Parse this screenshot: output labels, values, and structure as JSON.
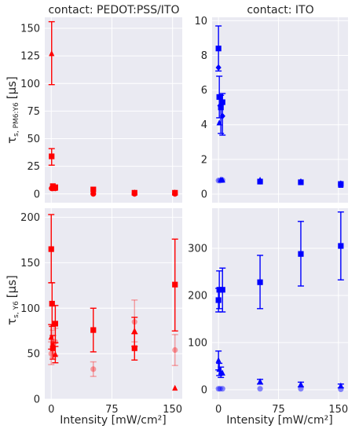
{
  "figure": {
    "xlabel": "Intensity [mW/cm²]",
    "row_ylabels": [
      {
        "main": "τ",
        "sub": "s, PM6:Y6",
        "unit": "[μs]"
      },
      {
        "main": "τ",
        "sub": "s, Y6",
        "unit": "[μs]"
      }
    ],
    "colors": {
      "red": "#ff0000",
      "blue": "#0000ff",
      "panel_bg": "#eaeaf2",
      "grid": "#ffffff"
    }
  },
  "chart_data": [
    {
      "type": "scatter",
      "title": "contact: PEDOT:PSS/ITO",
      "xlim": [
        -8,
        162
      ],
      "ylim": [
        -8,
        160
      ],
      "xticks": [
        0,
        75,
        150
      ],
      "yticks": [
        0,
        25,
        50,
        75,
        100,
        125,
        150
      ],
      "color": "#ff0000",
      "series": [
        {
          "marker": "triangle",
          "alpha": 1.0,
          "points": [
            {
              "x": 0.5,
              "y": 127,
              "lo": 99,
              "hi": 156
            },
            {
              "x": 2,
              "y": 6
            },
            {
              "x": 5,
              "y": 5
            },
            {
              "x": 52,
              "y": 2
            },
            {
              "x": 103,
              "y": 1
            },
            {
              "x": 153,
              "y": 1
            }
          ]
        },
        {
          "marker": "square",
          "alpha": 1.0,
          "points": [
            {
              "x": 0.5,
              "y": 34,
              "lo": 26,
              "hi": 41
            },
            {
              "x": 2,
              "y": 7
            },
            {
              "x": 5,
              "y": 6
            },
            {
              "x": 52,
              "y": 4
            },
            {
              "x": 103,
              "y": 1
            },
            {
              "x": 153,
              "y": 1
            }
          ]
        },
        {
          "marker": "circle",
          "alpha": 1.0,
          "points": [
            {
              "x": 0.5,
              "y": 5
            },
            {
              "x": 2,
              "y": 5
            },
            {
              "x": 5,
              "y": 5
            },
            {
              "x": 52,
              "y": 0
            },
            {
              "x": 103,
              "y": 0
            },
            {
              "x": 153,
              "y": 0
            }
          ]
        }
      ]
    },
    {
      "type": "scatter",
      "title": "contact: ITO",
      "xlim": [
        -8,
        162
      ],
      "ylim": [
        -0.5,
        10.2
      ],
      "xticks": [
        0,
        75,
        150
      ],
      "yticks": [
        0,
        2,
        4,
        6,
        8,
        10
      ],
      "color": "#0000ff",
      "series": [
        {
          "marker": "square",
          "alpha": 1.0,
          "points": [
            {
              "x": 0,
              "y": 8.4,
              "lo": 7.1,
              "hi": 9.7
            },
            {
              "x": 1,
              "y": 5.6,
              "lo": 4.4,
              "hi": 6.8
            },
            {
              "x": 3,
              "y": 5.0,
              "lo": 3.5,
              "hi": 5.7
            },
            {
              "x": 5,
              "y": 5.3,
              "lo": 3.4,
              "hi": 5.8
            },
            {
              "x": 52,
              "y": 0.72
            },
            {
              "x": 103,
              "y": 0.68
            },
            {
              "x": 153,
              "y": 0.58
            }
          ]
        },
        {
          "marker": "triangle",
          "alpha": 1.0,
          "points": [
            {
              "x": 1,
              "y": 4.1
            },
            {
              "x": 3,
              "y": 0.82
            },
            {
              "x": 5,
              "y": 0.8
            },
            {
              "x": 52,
              "y": 0.8
            },
            {
              "x": 103,
              "y": 0.72
            },
            {
              "x": 153,
              "y": 0.5
            }
          ]
        },
        {
          "marker": "diamond",
          "alpha": 1.0,
          "points": [
            {
              "x": 0,
              "y": 7.3
            },
            {
              "x": 2,
              "y": 5.1
            },
            {
              "x": 5,
              "y": 4.5
            },
            {
              "x": 52,
              "y": 0.74
            },
            {
              "x": 103,
              "y": 0.7
            },
            {
              "x": 153,
              "y": 0.6
            }
          ]
        },
        {
          "marker": "circle",
          "alpha": 0.45,
          "points": [
            {
              "x": 0,
              "y": 0.78
            },
            {
              "x": 2,
              "y": 0.78
            },
            {
              "x": 5,
              "y": 0.8
            },
            {
              "x": 52,
              "y": 0.72
            },
            {
              "x": 103,
              "y": 0.68
            },
            {
              "x": 153,
              "y": 0.55
            }
          ]
        }
      ]
    },
    {
      "type": "scatter",
      "title": "",
      "xlim": [
        -8,
        162
      ],
      "ylim": [
        0,
        210
      ],
      "xticks": [
        0,
        75,
        150
      ],
      "yticks": [
        0,
        50,
        100,
        150,
        200
      ],
      "color": "#ff0000",
      "series": [
        {
          "marker": "square",
          "alpha": 1.0,
          "points": [
            {
              "x": 0,
              "y": 165,
              "lo": 128,
              "hi": 203
            },
            {
              "x": 1,
              "y": 105,
              "lo": 80,
              "hi": 128
            },
            {
              "x": 2,
              "y": 56,
              "lo": 44,
              "hi": 70
            },
            {
              "x": 5,
              "y": 83,
              "lo": 62,
              "hi": 103
            },
            {
              "x": 52,
              "y": 76,
              "lo": 52,
              "hi": 100
            },
            {
              "x": 103,
              "y": 56,
              "lo": 43,
              "hi": 72
            },
            {
              "x": 153,
              "y": 126,
              "lo": 75,
              "hi": 176
            }
          ]
        },
        {
          "marker": "triangle",
          "alpha": 1.0,
          "points": [
            {
              "x": 0,
              "y": 68,
              "lo": 55,
              "hi": 82
            },
            {
              "x": 2,
              "y": 60
            },
            {
              "x": 5,
              "y": 49,
              "lo": 40,
              "hi": 58
            },
            {
              "x": 103,
              "y": 75,
              "lo": 58,
              "hi": 90
            },
            {
              "x": 153,
              "y": 12
            }
          ]
        },
        {
          "marker": "circle",
          "alpha": 0.35,
          "points": [
            {
              "x": 0,
              "y": 50,
              "lo": 38,
              "hi": 63
            },
            {
              "x": 2,
              "y": 61,
              "lo": 46,
              "hi": 76
            },
            {
              "x": 5,
              "y": 63,
              "lo": 48,
              "hi": 78
            },
            {
              "x": 52,
              "y": 33,
              "lo": 25,
              "hi": 41
            },
            {
              "x": 103,
              "y": 85,
              "lo": 63,
              "hi": 109
            },
            {
              "x": 153,
              "y": 54,
              "lo": 37,
              "hi": 71
            }
          ]
        }
      ]
    },
    {
      "type": "scatter",
      "title": "",
      "xlim": [
        -8,
        162
      ],
      "ylim": [
        -20,
        385
      ],
      "xticks": [
        0,
        75,
        150
      ],
      "yticks": [
        0,
        100,
        200,
        300
      ],
      "color": "#0000ff",
      "series": [
        {
          "marker": "square",
          "alpha": 1.0,
          "points": [
            {
              "x": 0,
              "y": 190,
              "lo": 165,
              "hi": 215
            },
            {
              "x": 1,
              "y": 212,
              "lo": 172,
              "hi": 252
            },
            {
              "x": 5,
              "y": 212,
              "lo": 165,
              "hi": 258
            },
            {
              "x": 52,
              "y": 228,
              "lo": 172,
              "hi": 285
            },
            {
              "x": 103,
              "y": 288,
              "lo": 220,
              "hi": 357
            },
            {
              "x": 153,
              "y": 305,
              "lo": 233,
              "hi": 377
            }
          ]
        },
        {
          "marker": "triangle",
          "alpha": 1.0,
          "points": [
            {
              "x": 0,
              "y": 62,
              "lo": 42,
              "hi": 82
            },
            {
              "x": 1,
              "y": 43,
              "lo": 30,
              "hi": 56
            },
            {
              "x": 3,
              "y": 37,
              "lo": 26,
              "hi": 48
            },
            {
              "x": 5,
              "y": 35
            },
            {
              "x": 52,
              "y": 17,
              "lo": 12,
              "hi": 22
            },
            {
              "x": 103,
              "y": 11,
              "lo": 6,
              "hi": 16
            },
            {
              "x": 153,
              "y": 8,
              "lo": 4,
              "hi": 12
            }
          ]
        },
        {
          "marker": "circle",
          "alpha": 0.45,
          "points": [
            {
              "x": 0,
              "y": 2
            },
            {
              "x": 2,
              "y": 2
            },
            {
              "x": 5,
              "y": 2
            },
            {
              "x": 52,
              "y": 2
            },
            {
              "x": 103,
              "y": 2
            },
            {
              "x": 153,
              "y": 1
            }
          ]
        }
      ]
    }
  ]
}
